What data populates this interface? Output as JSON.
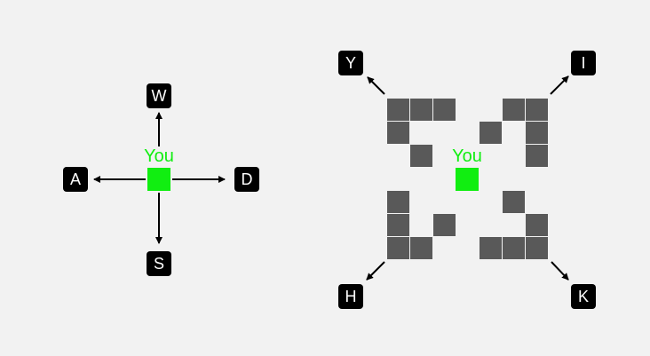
{
  "colors": {
    "background": "#f2f2f2",
    "player": "#11ee11",
    "wall": "#595959",
    "key_bg": "#000000",
    "key_fg": "#ffffff",
    "arrow": "#000000"
  },
  "panels": [
    {
      "id": "cardinal",
      "player_label": "You",
      "keys": [
        {
          "label": "W",
          "direction": "up"
        },
        {
          "label": "A",
          "direction": "left"
        },
        {
          "label": "D",
          "direction": "right"
        },
        {
          "label": "S",
          "direction": "down"
        }
      ]
    },
    {
      "id": "diagonal",
      "player_label": "You",
      "keys": [
        {
          "label": "Y",
          "direction": "up-left"
        },
        {
          "label": "I",
          "direction": "up-right"
        },
        {
          "label": "H",
          "direction": "down-left"
        },
        {
          "label": "K",
          "direction": "down-right"
        }
      ],
      "grid": {
        "rows": 7,
        "cols": 7,
        "walls": [
          [
            0,
            0
          ],
          [
            0,
            1
          ],
          [
            0,
            2
          ],
          [
            0,
            5
          ],
          [
            0,
            6
          ],
          [
            1,
            0
          ],
          [
            1,
            4
          ],
          [
            1,
            6
          ],
          [
            2,
            1
          ],
          [
            2,
            6
          ],
          [
            4,
            0
          ],
          [
            4,
            5
          ],
          [
            5,
            0
          ],
          [
            5,
            2
          ],
          [
            5,
            6
          ],
          [
            6,
            0
          ],
          [
            6,
            1
          ],
          [
            6,
            4
          ],
          [
            6,
            5
          ],
          [
            6,
            6
          ]
        ],
        "player": [
          3,
          3
        ]
      }
    }
  ]
}
